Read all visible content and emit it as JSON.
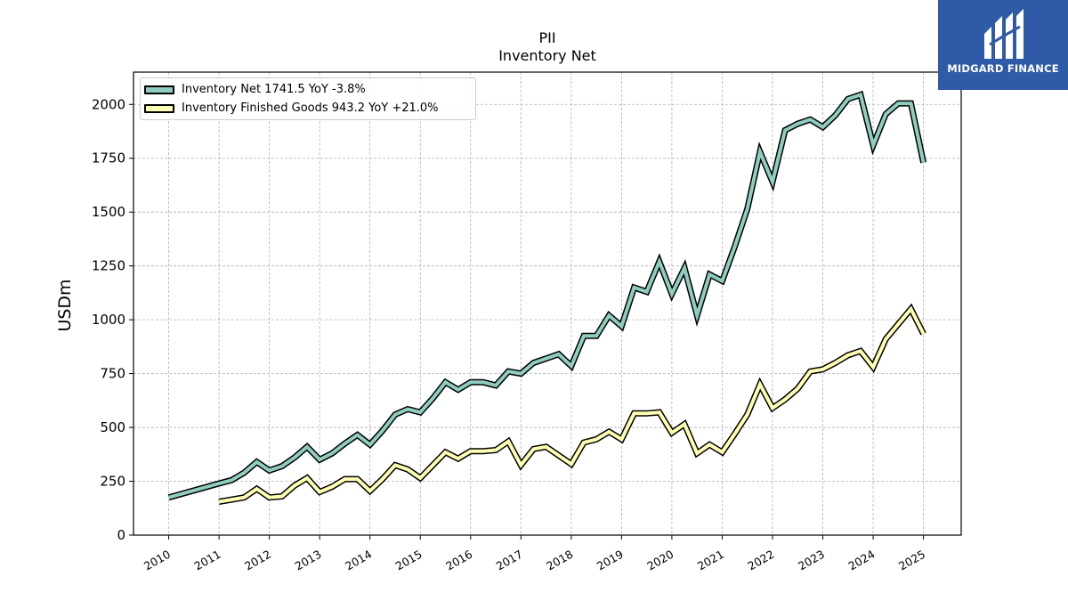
{
  "chart_data": {
    "type": "line",
    "title": "PII",
    "subtitle": "Inventory Net",
    "ylabel": "USDm",
    "xlabel": "",
    "ylim": [
      0,
      2150
    ],
    "xlim": [
      2009.3,
      2025.75
    ],
    "yticks": [
      0,
      250,
      500,
      750,
      1000,
      1250,
      1500,
      1750,
      2000
    ],
    "xticks": [
      "2010",
      "2011",
      "2012",
      "2013",
      "2014",
      "2015",
      "2016",
      "2017",
      "2018",
      "2019",
      "2020",
      "2021",
      "2022",
      "2023",
      "2024",
      "2025"
    ],
    "grid": true,
    "legend_position": "top-left",
    "series": [
      {
        "name": "Inventory Net  1741.5 YoY -3.8%",
        "color": "#8ecdc0",
        "x": [
          2010.0,
          2011.0,
          2011.25,
          2011.5,
          2011.75,
          2012.0,
          2012.25,
          2012.5,
          2012.75,
          2013.0,
          2013.25,
          2013.5,
          2013.75,
          2014.0,
          2014.25,
          2014.5,
          2014.75,
          2015.0,
          2015.25,
          2015.5,
          2015.75,
          2016.0,
          2016.25,
          2016.5,
          2016.75,
          2017.0,
          2017.25,
          2017.5,
          2017.75,
          2018.0,
          2018.25,
          2018.5,
          2018.75,
          2019.0,
          2019.25,
          2019.5,
          2019.75,
          2020.0,
          2020.25,
          2020.5,
          2020.75,
          2021.0,
          2021.25,
          2021.5,
          2021.75,
          2022.0,
          2022.25,
          2022.5,
          2022.75,
          2023.0,
          2023.25,
          2023.5,
          2023.75,
          2024.0,
          2024.25,
          2024.5,
          2024.75,
          2025.0
        ],
        "y": [
          175,
          240,
          255,
          290,
          340,
          300,
          320,
          360,
          410,
          350,
          380,
          425,
          465,
          420,
          485,
          560,
          585,
          570,
          635,
          710,
          675,
          710,
          710,
          695,
          760,
          750,
          800,
          820,
          840,
          785,
          925,
          925,
          1020,
          970,
          1150,
          1130,
          1270,
          1120,
          1240,
          1020,
          1210,
          1180,
          1340,
          1515,
          1780,
          1640,
          1880,
          1910,
          1930,
          1895,
          1950,
          2025,
          2045,
          1810,
          1955,
          2005,
          2005,
          1730
        ]
      },
      {
        "name": "Inventory Finished Goods  943.2 YoY +21.0%",
        "color": "#ffffb3",
        "x": [
          2011.0,
          2011.5,
          2011.75,
          2012.0,
          2012.25,
          2012.5,
          2012.75,
          2013.0,
          2013.25,
          2013.5,
          2013.75,
          2014.0,
          2014.25,
          2014.5,
          2014.75,
          2015.0,
          2015.25,
          2015.5,
          2015.75,
          2016.0,
          2016.25,
          2016.5,
          2016.75,
          2017.0,
          2017.25,
          2017.5,
          2017.75,
          2018.0,
          2018.25,
          2018.5,
          2018.75,
          2019.0,
          2019.25,
          2019.5,
          2019.75,
          2020.0,
          2020.25,
          2020.5,
          2020.75,
          2021.0,
          2021.25,
          2021.5,
          2021.75,
          2022.0,
          2022.25,
          2022.5,
          2022.75,
          2023.0,
          2023.25,
          2023.5,
          2023.75,
          2024.0,
          2024.25,
          2024.5,
          2024.75,
          2025.0
        ],
        "y": [
          155,
          175,
          215,
          175,
          180,
          230,
          265,
          200,
          225,
          260,
          260,
          205,
          260,
          325,
          305,
          265,
          325,
          385,
          355,
          390,
          390,
          395,
          435,
          325,
          400,
          410,
          370,
          330,
          430,
          445,
          480,
          445,
          565,
          565,
          570,
          475,
          515,
          380,
          420,
          385,
          470,
          560,
          700,
          590,
          630,
          680,
          760,
          770,
          800,
          835,
          855,
          780,
          910,
          980,
          1050,
          935
        ]
      }
    ]
  },
  "logo": {
    "text": "MIDGARD FINANCE",
    "color": "#2f5aa8"
  }
}
